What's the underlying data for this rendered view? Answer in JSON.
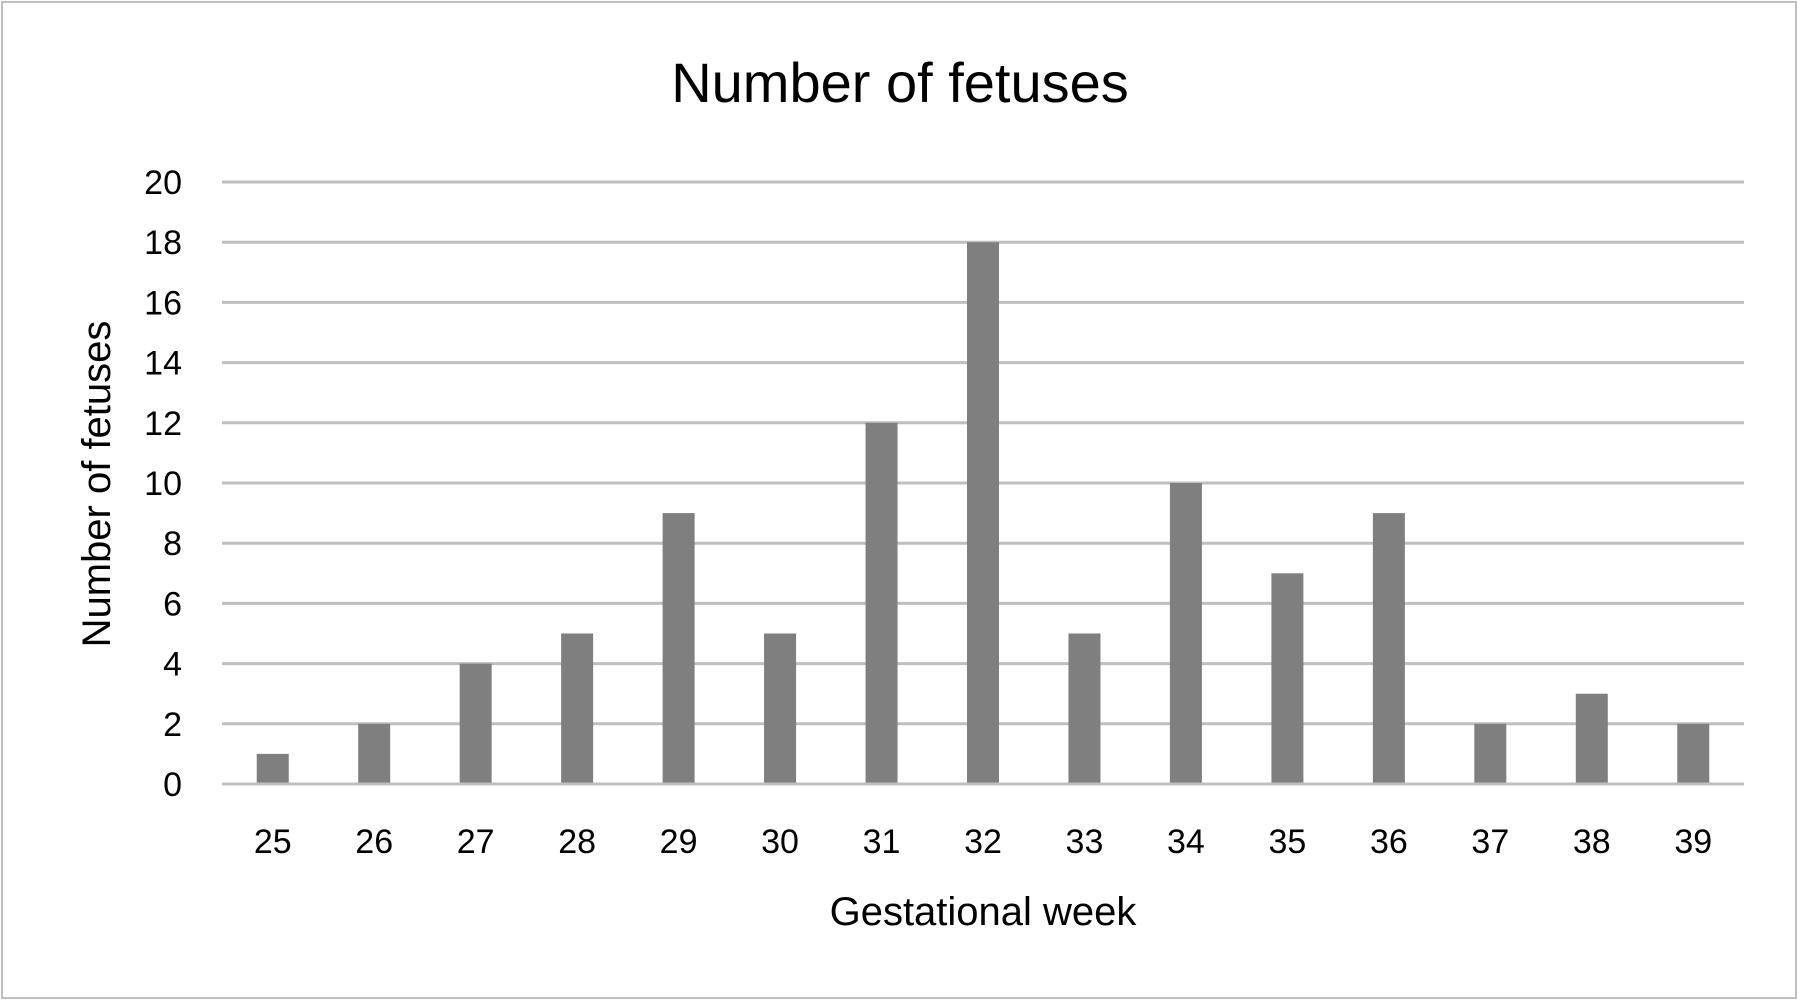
{
  "chart_data": {
    "type": "bar",
    "title": "Number of fetuses",
    "xlabel": "Gestational week",
    "ylabel": "Number of fetuses",
    "categories": [
      "25",
      "26",
      "27",
      "28",
      "29",
      "30",
      "31",
      "32",
      "33",
      "34",
      "35",
      "36",
      "37",
      "38",
      "39"
    ],
    "values": [
      1,
      2,
      4,
      5,
      9,
      5,
      12,
      18,
      5,
      10,
      7,
      9,
      2,
      3,
      2
    ],
    "ylim": [
      0,
      20
    ],
    "yticks": [
      0,
      2,
      4,
      6,
      8,
      10,
      12,
      14,
      16,
      18,
      20
    ],
    "grid": true,
    "legend": "none",
    "colors": {
      "bar": "#7f7f7f",
      "grid": "#bfbfbf",
      "border": "#bfbfbf"
    }
  }
}
